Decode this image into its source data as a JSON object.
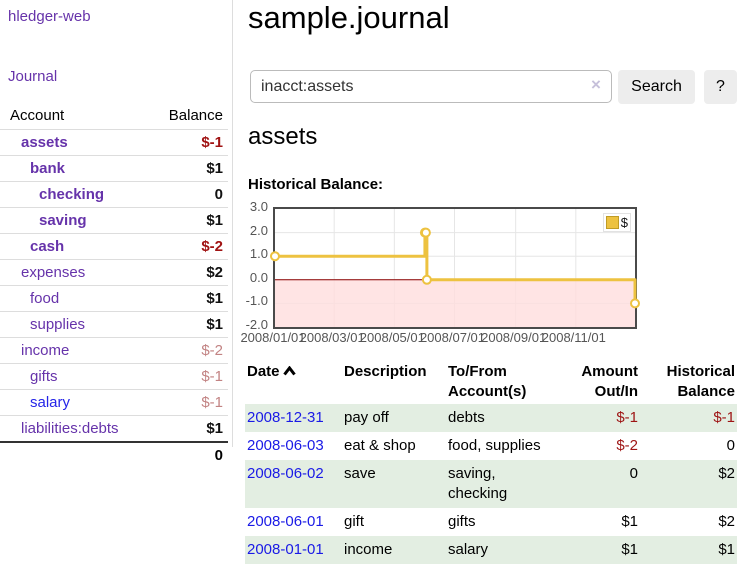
{
  "colors": {
    "link_purple": "#6633aa",
    "link_blue": "#2525e8",
    "negative_red": "#a01313",
    "negative_muted": "#c28383",
    "row_green": "#e3eee2",
    "chart_line_gold": "#edc240",
    "chart_negative_region": "#ffdddd",
    "chart_zero_line": "#8b0000",
    "button_gray": "#ededed"
  },
  "app": {
    "title": "hledger-web",
    "nav_journal": "Journal"
  },
  "sidebar": {
    "header": {
      "account": "Account",
      "balance": "Balance"
    },
    "accounts": [
      {
        "name": "assets",
        "depth": 1,
        "balance": "$-1",
        "bold": true,
        "balance_style": "negative-bold"
      },
      {
        "name": "bank",
        "depth": 2,
        "balance": "$1",
        "bold": true,
        "balance_style": "positive"
      },
      {
        "name": "checking",
        "depth": 3,
        "balance": "0",
        "bold": true,
        "balance_style": "positive"
      },
      {
        "name": "saving",
        "depth": 3,
        "balance": "$1",
        "bold": true,
        "balance_style": "positive"
      },
      {
        "name": "cash",
        "depth": 2,
        "balance": "$-2",
        "bold": true,
        "balance_style": "negative-bold"
      },
      {
        "name": "expenses",
        "depth": 1,
        "balance": "$2",
        "bold": false,
        "balance_style": "positive"
      },
      {
        "name": "food",
        "depth": 2,
        "balance": "$1",
        "bold": false,
        "balance_style": "positive"
      },
      {
        "name": "supplies",
        "depth": 2,
        "balance": "$1",
        "bold": false,
        "balance_style": "positive"
      },
      {
        "name": "income",
        "depth": 1,
        "balance": "$-2",
        "bold": false,
        "balance_style": "negative-muted"
      },
      {
        "name": "gifts",
        "depth": 2,
        "balance": "$-1",
        "bold": false,
        "balance_style": "negative-muted"
      },
      {
        "name": "salary",
        "depth": 2,
        "balance": "$-1",
        "bold": false,
        "balance_style": "negative-muted",
        "link_color": "blue"
      },
      {
        "name": "liabilities:debts",
        "depth": 1,
        "balance": "$1",
        "bold": false,
        "balance_style": "positive"
      }
    ],
    "total": "0"
  },
  "main": {
    "title": "sample.journal",
    "search": {
      "value": "inacct:assets",
      "clear": "×",
      "search_label": "Search",
      "help_label": "?"
    },
    "account_title": "assets",
    "chart_title": "Historical Balance:"
  },
  "chart_data": {
    "type": "line",
    "step": true,
    "title": "Historical Balance",
    "legend": {
      "label": "$",
      "position": "top-right"
    },
    "series": [
      {
        "name": "$",
        "color": "#edc240",
        "points": [
          {
            "date": "2008-01-01",
            "value": 1
          },
          {
            "date": "2008-06-01",
            "value": 2
          },
          {
            "date": "2008-06-02",
            "value": 2
          },
          {
            "date": "2008-06-03",
            "value": 0
          },
          {
            "date": "2008-12-31",
            "value": -1
          }
        ]
      }
    ],
    "x_range": [
      "2008-01-01",
      "2008-12-31"
    ],
    "x_ticks": [
      "2008/01/01",
      "2008/03/01",
      "2008/05/01",
      "2008/07/01",
      "2008/09/01",
      "2008/11/01"
    ],
    "y_ticks": [
      "3.0",
      "2.0",
      "1.0",
      "0.0",
      "-1.0",
      "-2.0"
    ],
    "ylim": [
      -2,
      3
    ],
    "grid": true,
    "negative_region": true
  },
  "register": {
    "headers": {
      "date": "Date",
      "description": "Description",
      "account": "To/From Account(s)",
      "amount": "Amount Out/In",
      "balance": "Historical Balance"
    },
    "rows": [
      {
        "date": "2008-12-31",
        "description": "pay off",
        "account": "debts",
        "amount": "$-1",
        "amount_negative": true,
        "balance": "$-1",
        "balance_negative": true
      },
      {
        "date": "2008-06-03",
        "description": "eat & shop",
        "account": "food, supplies",
        "amount": "$-2",
        "amount_negative": true,
        "balance": "0",
        "balance_negative": false
      },
      {
        "date": "2008-06-02",
        "description": "save",
        "account": "saving, checking",
        "amount": "0",
        "amount_negative": false,
        "balance": "$2",
        "balance_negative": false
      },
      {
        "date": "2008-06-01",
        "description": "gift",
        "account": "gifts",
        "amount": "$1",
        "amount_negative": false,
        "balance": "$2",
        "balance_negative": false
      },
      {
        "date": "2008-01-01",
        "description": "income",
        "account": "salary",
        "amount": "$1",
        "amount_negative": false,
        "balance": "$1",
        "balance_negative": false
      }
    ]
  }
}
